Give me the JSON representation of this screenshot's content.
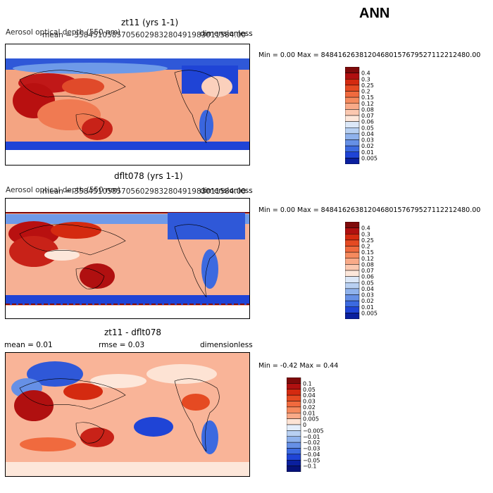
{
  "header": {
    "season": "ANN"
  },
  "panels": [
    {
      "title": "zt11 (yrs 1-1)",
      "left_label": "Aerosol optical depth (550 nm)",
      "mean_label": "mean =  3584510585705602983280491983011584.00",
      "units": "dimensionless",
      "minmax": "Min =    0.00 Max = 84841626381204680157679527112212480.00"
    },
    {
      "title": "dflt078 (yrs 1-1)",
      "left_label": "Aerosol optical depth (550 nm)",
      "mean_label": "mean =  3584510585705602983280491983011584.00",
      "units": "dimensionless",
      "minmax": "Min =    0.00 Max = 84841626381204680157679527112212480.00"
    },
    {
      "title": "zt11 - dflt078",
      "mean_label": "mean =    0.01",
      "rmse_label": "rmse =    0.03",
      "units": "dimensionless",
      "minmax": "Min =  -0.42 Max =   0.44"
    }
  ],
  "colorbars": {
    "absolute": {
      "labels": [
        "0.4",
        "0.3",
        "0.25",
        "0.2",
        "0.15",
        "0.12",
        "0.08",
        "0.07",
        "0.06",
        "0.05",
        "0.04",
        "0.03",
        "0.02",
        "0.01",
        "0.005"
      ],
      "colors": [
        "#7f0a0a",
        "#b01010",
        "#d42a10",
        "#e54a22",
        "#f06a3e",
        "#f58a5e",
        "#f9aa88",
        "#fbc8b0",
        "#fde7da",
        "#dce8f8",
        "#b8d0f2",
        "#8fb2ec",
        "#6690e6",
        "#3c6ae0",
        "#1f44d6",
        "#0a1f9e"
      ]
    },
    "difference": {
      "labels": [
        "0.1",
        "0.05",
        "0.04",
        "0.03",
        "0.02",
        "0.01",
        "0.005",
        "0",
        "−0.005",
        "−0.01",
        "−0.02",
        "−0.03",
        "−0.04",
        "−0.05",
        "−0.1"
      ],
      "colors": [
        "#7f0a0a",
        "#b01010",
        "#d42a10",
        "#e54a22",
        "#f06a3e",
        "#f58a5e",
        "#f9aa88",
        "#fde3d4",
        "#e4eefb",
        "#b8d0f2",
        "#8fb2ec",
        "#6690e6",
        "#3c6ae0",
        "#1f44d6",
        "#0a1f9e",
        "#06127a"
      ]
    }
  },
  "chart_data": [
    {
      "type": "heatmap",
      "title": "zt11 (yrs 1-1)",
      "variable": "Aerosol optical depth (550 nm)",
      "units": "dimensionless",
      "mean": "3584510585705602983280491983011584.00",
      "min": 0.0,
      "max": "84841626381204680157679527112212480.00",
      "contour_levels": [
        0.005,
        0.01,
        0.02,
        0.03,
        0.04,
        0.05,
        0.06,
        0.07,
        0.08,
        0.12,
        0.15,
        0.2,
        0.25,
        0.3,
        0.4
      ]
    },
    {
      "type": "heatmap",
      "title": "dflt078 (yrs 1-1)",
      "variable": "Aerosol optical depth (550 nm)",
      "units": "dimensionless",
      "mean": "3584510585705602983280491983011584.00",
      "min": 0.0,
      "max": "84841626381204680157679527112212480.00",
      "contour_levels": [
        0.005,
        0.01,
        0.02,
        0.03,
        0.04,
        0.05,
        0.06,
        0.07,
        0.08,
        0.12,
        0.15,
        0.2,
        0.25,
        0.3,
        0.4
      ]
    },
    {
      "type": "heatmap",
      "title": "zt11 - dflt078",
      "units": "dimensionless",
      "mean": 0.01,
      "rmse": 0.03,
      "min": -0.42,
      "max": 0.44,
      "contour_levels": [
        -0.1,
        -0.05,
        -0.04,
        -0.03,
        -0.02,
        -0.01,
        -0.005,
        0,
        0.005,
        0.01,
        0.02,
        0.03,
        0.04,
        0.05,
        0.1
      ]
    }
  ]
}
